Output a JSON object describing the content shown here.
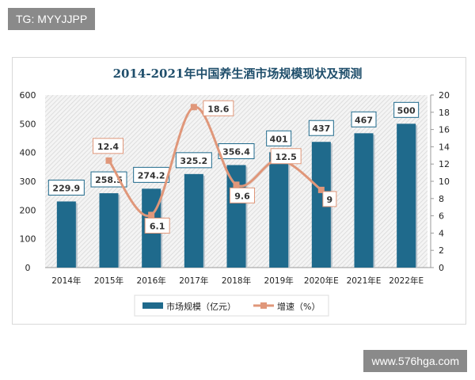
{
  "watermarks": {
    "top_left": "TG: MYYJJPP",
    "bottom_right": "www.576hga.com"
  },
  "chart_data": {
    "type": "bar",
    "title": "2014-2021年中国养生酒市场规模现状及预测",
    "categories": [
      "2014年",
      "2015年",
      "2016年",
      "2017年",
      "2018年",
      "2019年",
      "2020年E",
      "2021年E",
      "2022年E"
    ],
    "series": [
      {
        "name": "市场规模（亿元）",
        "type": "bar",
        "axis": "left",
        "color": "#1f6a8c",
        "values": [
          229.9,
          258.5,
          274.2,
          325.2,
          356.4,
          401,
          437,
          467,
          500
        ]
      },
      {
        "name": "增速（%）",
        "type": "line",
        "axis": "right",
        "color": "#e0977a",
        "values": [
          null,
          12.4,
          6.1,
          18.6,
          9.6,
          12.5,
          9,
          null,
          null
        ]
      }
    ],
    "y_left": {
      "range": [
        0,
        600
      ],
      "ticks": [
        0,
        100,
        200,
        300,
        400,
        500,
        600
      ]
    },
    "y_right": {
      "range": [
        0,
        20
      ],
      "ticks": [
        0,
        2,
        4,
        6,
        8,
        10,
        12,
        14,
        16,
        18,
        20
      ]
    },
    "legend": "bottom",
    "grid": false,
    "background": "diagonal hatch"
  }
}
